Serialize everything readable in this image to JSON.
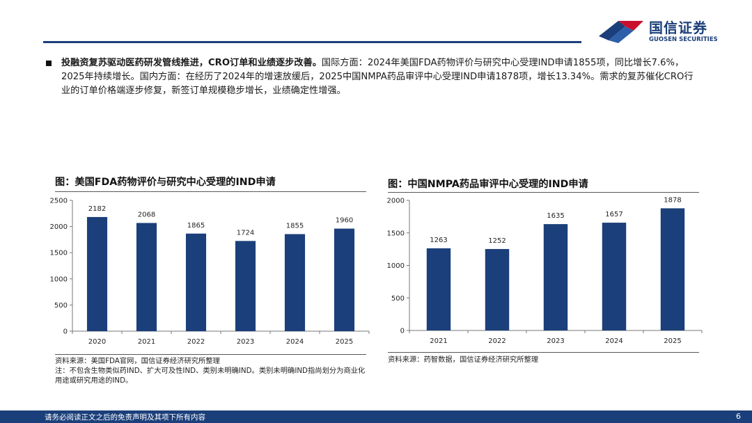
{
  "header": {
    "logo_cn": "国信证券",
    "logo_en": "GUOSEN SECURITIES",
    "brand_color": "#1b3f7a",
    "accent_color": "#c8102e"
  },
  "bullet": {
    "bold_text": "投融资复苏驱动医药研发管线推进，CRO订单和业绩逐步改善。",
    "body_text": "国际方面：2024年美国FDA药物评价与研究中心受理IND申请1855项，同比增长7.6%，2025年持续增长。国内方面：在经历了2024年的增速放缓后，2025中国NMPA药品审评中心受理IND申请1878项，增长13.34%。需求的复苏催化CRO行业的订单价格端逐步修复，新签订单规模稳步增长，业绩确定性增强。"
  },
  "charts": {
    "left": {
      "title": "图：美国FDA药物评价与研究中心受理的IND申请",
      "source": "资料来源：美国FDA官网，国信证券经济研究所整理",
      "note": "注：不包含生物类似药IND、扩大可及性IND、类别未明确IND。类别未明确IND指尚划分为商业化用途或研究用途的IND。"
    },
    "right": {
      "title": "图：中国NMPA药品审评中心受理的IND申请",
      "source": "资料来源：药智数据，国信证券经济研究所整理"
    }
  },
  "chart_data": [
    {
      "type": "bar",
      "title": "图：美国FDA药物评价与研究中心受理的IND申请",
      "categories": [
        "2020",
        "2021",
        "2022",
        "2023",
        "2024",
        "2025"
      ],
      "values": [
        2182,
        2068,
        1865,
        1724,
        1855,
        1960
      ],
      "ylim": [
        0,
        2500
      ],
      "yticks": [
        0,
        500,
        1000,
        1500,
        2000,
        2500
      ],
      "bar_color": "#1b3f7a",
      "grid": false,
      "data_labels": true
    },
    {
      "type": "bar",
      "title": "图：中国NMPA药品审评中心受理的IND申请",
      "categories": [
        "2021",
        "2022",
        "2023",
        "2024",
        "2025"
      ],
      "values": [
        1263,
        1252,
        1635,
        1657,
        1878
      ],
      "ylim": [
        0,
        2000
      ],
      "yticks": [
        0,
        500,
        1000,
        1500,
        2000
      ],
      "bar_color": "#1b3f7a",
      "grid": false,
      "data_labels": true
    }
  ],
  "footer": {
    "disclaimer": "请务必阅读正文之后的免责声明及其项下所有内容",
    "page_number": "6"
  }
}
